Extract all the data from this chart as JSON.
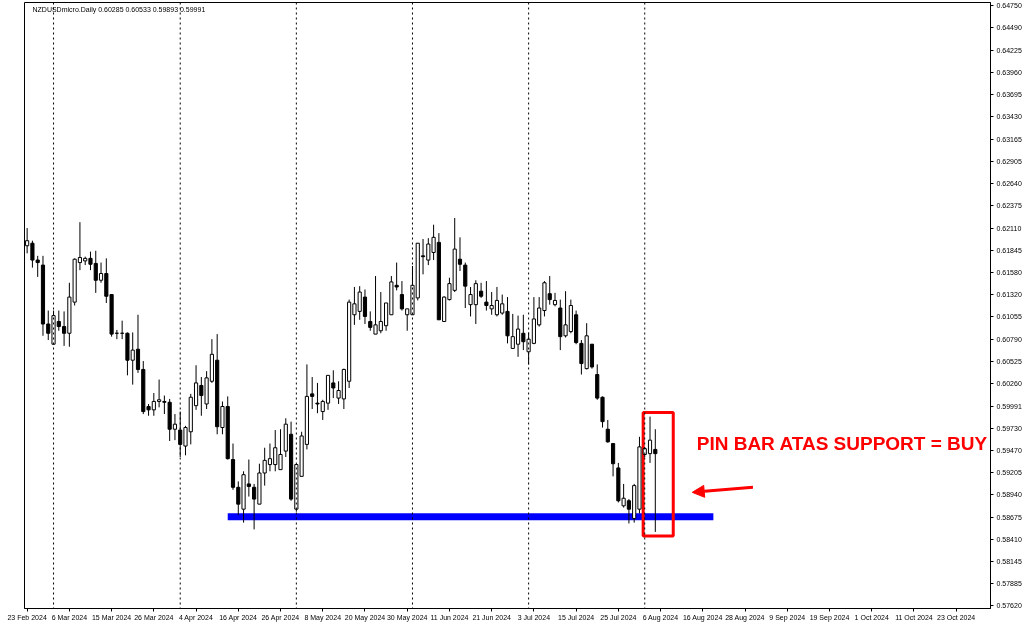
{
  "chart_data": {
    "type": "candlestick",
    "title": "NZDUSDmicro.Daily 0.60285 0.60533 0.59893 0.59991",
    "categories": [
      "23 Feb 2024",
      null,
      null,
      null,
      null,
      null,
      null,
      null,
      "6 Mar 2024",
      null,
      null,
      null,
      null,
      null,
      null,
      null,
      "15 Mar 2024",
      null,
      null,
      null,
      null,
      null,
      null,
      null,
      "26 Mar 2024",
      null,
      null,
      null,
      null,
      null,
      null,
      null,
      "4 Apr 2024",
      null,
      null,
      null,
      null,
      null,
      null,
      null,
      "16 Apr 2024",
      null,
      null,
      null,
      null,
      null,
      null,
      null,
      "26 Apr 2024",
      null,
      null,
      null,
      null,
      null,
      null,
      null,
      "8 May 2024",
      null,
      null,
      null,
      null,
      null,
      null,
      null,
      "20 May 2024",
      null,
      null,
      null,
      null,
      null,
      null,
      null,
      "30 May 2024",
      null,
      null,
      null,
      null,
      null,
      null,
      null,
      "11 Jun 2024",
      null,
      null,
      null,
      null,
      null,
      null,
      null,
      "21 Jun 2024",
      null,
      null,
      null,
      null,
      null,
      null,
      null,
      "3 Jul 2024",
      null,
      null,
      null,
      null,
      null,
      null,
      null,
      "15 Jul 2024",
      null,
      null,
      null,
      null,
      null,
      null,
      null,
      "25 Jul 2024",
      null,
      null,
      null,
      null,
      null,
      null,
      null,
      "6 Aug 2024",
      null,
      null,
      null,
      null,
      null,
      null,
      null,
      "16 Aug 2024",
      null,
      null,
      null,
      null,
      null,
      null,
      null,
      "28 Aug 2024",
      null,
      null,
      null,
      null,
      null,
      null,
      null,
      "9 Sep 2024",
      null,
      null,
      null,
      null,
      null,
      null,
      null,
      "19 Sep 2024",
      null,
      null,
      null,
      null,
      null,
      null,
      null,
      "1 Oct 2024",
      null,
      null,
      null,
      null,
      null,
      null,
      null,
      "11 Oct 2024",
      null,
      null,
      null,
      null,
      null,
      null,
      null,
      "23 Oct 2024",
      null,
      null,
      null,
      null,
      null,
      null
    ],
    "ohlc": [
      [
        0.619,
        0.6211,
        0.6181,
        0.6196
      ],
      [
        0.6193,
        0.6196,
        0.6164,
        0.6173
      ],
      [
        0.6173,
        0.6178,
        0.6153,
        0.617
      ],
      [
        0.6167,
        0.6178,
        0.6083,
        0.6097
      ],
      [
        0.6097,
        0.6113,
        0.6078,
        0.6086
      ],
      [
        0.6073,
        0.6113,
        0.6073,
        0.6107
      ],
      [
        0.61,
        0.6113,
        0.6089,
        0.6094
      ],
      [
        0.6094,
        0.6112,
        0.6071,
        0.6086
      ],
      [
        0.6086,
        0.6146,
        0.607,
        0.6129
      ],
      [
        0.6123,
        0.6175,
        0.6119,
        0.6174
      ],
      [
        0.617,
        0.6218,
        0.6161,
        0.6176
      ],
      [
        0.6172,
        0.6177,
        0.6167,
        0.6175
      ],
      [
        0.6175,
        0.6183,
        0.6161,
        0.6168
      ],
      [
        0.6169,
        0.6184,
        0.6134,
        0.6149
      ],
      [
        0.6149,
        0.617,
        0.6146,
        0.6157
      ],
      [
        0.6157,
        0.6175,
        0.6122,
        0.613
      ],
      [
        0.6132,
        0.6132,
        0.6082,
        0.6085
      ],
      [
        0.6086,
        0.609,
        0.6079,
        0.6086
      ],
      [
        0.6086,
        0.6101,
        0.6079,
        0.6086
      ],
      [
        0.6086,
        0.6087,
        0.6036,
        0.6054
      ],
      [
        0.6054,
        0.6087,
        0.6025,
        0.6066
      ],
      [
        0.6067,
        0.6108,
        0.6039,
        0.6043
      ],
      [
        0.6043,
        0.6053,
        0.599,
        0.5993
      ],
      [
        0.5999,
        0.6002,
        0.5988,
        0.5995
      ],
      [
        0.5995,
        0.6015,
        0.5988,
        0.6005
      ],
      [
        0.6005,
        0.6031,
        0.5998,
        0.6007
      ],
      [
        0.6005,
        0.6012,
        0.599,
        0.6004
      ],
      [
        0.6004,
        0.6008,
        0.5958,
        0.5972
      ],
      [
        0.5972,
        0.599,
        0.5959,
        0.5978
      ],
      [
        0.5971,
        0.5993,
        0.5939,
        0.5954
      ],
      [
        0.5952,
        0.5976,
        0.5941,
        0.5974
      ],
      [
        0.5969,
        0.6014,
        0.5954,
        0.601
      ],
      [
        0.6,
        0.6048,
        0.5995,
        0.6027
      ],
      [
        0.6024,
        0.6034,
        0.5988,
        0.6012
      ],
      [
        0.6002,
        0.6041,
        0.5996,
        0.6033
      ],
      [
        0.6029,
        0.6079,
        0.6027,
        0.6061
      ],
      [
        0.6054,
        0.6085,
        0.5966,
        0.5975
      ],
      [
        0.5974,
        0.6005,
        0.5966,
        0.5999
      ],
      [
        0.5999,
        0.6011,
        0.5936,
        0.5937
      ],
      [
        0.5936,
        0.5955,
        0.59,
        0.5903
      ],
      [
        0.5903,
        0.591,
        0.587,
        0.5883
      ],
      [
        0.5877,
        0.5922,
        0.5861,
        0.5918
      ],
      [
        0.5907,
        0.5936,
        0.5892,
        0.5904
      ],
      [
        0.5903,
        0.5907,
        0.5853,
        0.5889
      ],
      [
        0.5883,
        0.5931,
        0.5883,
        0.592
      ],
      [
        0.592,
        0.595,
        0.5905,
        0.5935
      ],
      [
        0.593,
        0.5955,
        0.5922,
        0.5937
      ],
      [
        0.593,
        0.5971,
        0.5922,
        0.595
      ],
      [
        0.5924,
        0.5972,
        0.5924,
        0.5942
      ],
      [
        0.5946,
        0.5985,
        0.5939,
        0.5978
      ],
      [
        0.5966,
        0.5981,
        0.5887,
        0.5889
      ],
      [
        0.5877,
        0.593,
        0.5874,
        0.593
      ],
      [
        0.5916,
        0.5969,
        0.5916,
        0.5964
      ],
      [
        0.5954,
        0.6049,
        0.5948,
        0.6011
      ],
      [
        0.6014,
        0.6034,
        0.5996,
        0.6011
      ],
      [
        0.6003,
        0.6027,
        0.5991,
        0.6002
      ],
      [
        0.5993,
        0.6007,
        0.5983,
        0.6005
      ],
      [
        0.6003,
        0.6036,
        0.5995,
        0.6036
      ],
      [
        0.6027,
        0.6042,
        0.6009,
        0.6021
      ],
      [
        0.6009,
        0.6029,
        0.6002,
        0.6018
      ],
      [
        0.6008,
        0.6044,
        0.5996,
        0.6043
      ],
      [
        0.6029,
        0.6126,
        0.6021,
        0.6123
      ],
      [
        0.6108,
        0.6141,
        0.6096,
        0.6121
      ],
      [
        0.6112,
        0.6142,
        0.6102,
        0.6135
      ],
      [
        0.6129,
        0.6138,
        0.6097,
        0.6106
      ],
      [
        0.61,
        0.6112,
        0.6089,
        0.6093
      ],
      [
        0.6085,
        0.6154,
        0.6085,
        0.6096
      ],
      [
        0.6089,
        0.6135,
        0.6086,
        0.61
      ],
      [
        0.6095,
        0.6122,
        0.6089,
        0.6122
      ],
      [
        0.6108,
        0.6154,
        0.6108,
        0.6147
      ],
      [
        0.6143,
        0.617,
        0.6137,
        0.6141
      ],
      [
        0.6132,
        0.6148,
        0.6113,
        0.6115
      ],
      [
        0.6108,
        0.6115,
        0.6089,
        0.6115
      ],
      [
        0.6108,
        0.6166,
        0.6108,
        0.6143
      ],
      [
        0.6128,
        0.6193,
        0.6125,
        0.6193
      ],
      [
        0.6178,
        0.6198,
        0.6156,
        0.6177
      ],
      [
        0.6173,
        0.6199,
        0.6167,
        0.6192
      ],
      [
        0.6182,
        0.6215,
        0.6173,
        0.62
      ],
      [
        0.6194,
        0.6205,
        0.6102,
        0.6102
      ],
      [
        0.61,
        0.613,
        0.61,
        0.6129
      ],
      [
        0.6126,
        0.6152,
        0.6125,
        0.6145
      ],
      [
        0.6137,
        0.6223,
        0.6135,
        0.6186
      ],
      [
        0.6174,
        0.62,
        0.616,
        0.6168
      ],
      [
        0.6167,
        0.617,
        0.6116,
        0.6142
      ],
      [
        0.612,
        0.6141,
        0.6106,
        0.6132
      ],
      [
        0.612,
        0.6149,
        0.6097,
        0.6145
      ],
      [
        0.6136,
        0.6146,
        0.6128,
        0.613
      ],
      [
        0.6123,
        0.6148,
        0.6113,
        0.6119
      ],
      [
        0.6115,
        0.6135,
        0.6108,
        0.6119
      ],
      [
        0.6108,
        0.6141,
        0.6106,
        0.6125
      ],
      [
        0.611,
        0.6132,
        0.6108,
        0.6121
      ],
      [
        0.6112,
        0.6129,
        0.6074,
        0.6083
      ],
      [
        0.6068,
        0.6109,
        0.6068,
        0.6082
      ],
      [
        0.6073,
        0.6107,
        0.6058,
        0.6091
      ],
      [
        0.6086,
        0.6108,
        0.6066,
        0.6076
      ],
      [
        0.6064,
        0.6087,
        0.6049,
        0.6079
      ],
      [
        0.6074,
        0.6129,
        0.6073,
        0.6103
      ],
      [
        0.6096,
        0.6129,
        0.6094,
        0.6116
      ],
      [
        0.6113,
        0.6148,
        0.6106,
        0.6146
      ],
      [
        0.6133,
        0.6154,
        0.612,
        0.6126
      ],
      [
        0.612,
        0.6134,
        0.6118,
        0.6125
      ],
      [
        0.6116,
        0.6126,
        0.6066,
        0.6082
      ],
      [
        0.6083,
        0.6136,
        0.6081,
        0.6096
      ],
      [
        0.6088,
        0.6126,
        0.6086,
        0.6119
      ],
      [
        0.6108,
        0.6113,
        0.6073,
        0.6075
      ],
      [
        0.6074,
        0.6078,
        0.6037,
        0.605
      ],
      [
        0.6044,
        0.6098,
        0.6043,
        0.6083
      ],
      [
        0.6073,
        0.6073,
        0.6044,
        0.6046
      ],
      [
        0.6037,
        0.6049,
        0.6007,
        0.6009
      ],
      [
        0.601,
        0.6011,
        0.5974,
        0.5981
      ],
      [
        0.5972,
        0.5983,
        0.5956,
        0.5957
      ],
      [
        0.5955,
        0.5955,
        0.5916,
        0.5931
      ],
      [
        0.5926,
        0.5932,
        0.5885,
        0.5887
      ],
      [
        0.5881,
        0.5907,
        0.5879,
        0.589
      ],
      [
        0.5887,
        0.5889,
        0.586,
        0.5877
      ],
      [
        0.5866,
        0.5907,
        0.5861,
        0.5905
      ],
      [
        0.5877,
        0.5963,
        0.5872,
        0.5951
      ],
      [
        0.5942,
        0.5951,
        0.5939,
        0.5949
      ],
      [
        0.5943,
        0.5987,
        0.5932,
        0.5959
      ],
      [
        0.5948,
        0.5972,
        0.585,
        0.5943
      ],
      null,
      null,
      null,
      null,
      null,
      null,
      null,
      null,
      null,
      null,
      null,
      null,
      null,
      null,
      null,
      null,
      null,
      null,
      null,
      null,
      null,
      null,
      null,
      null,
      null,
      null,
      null,
      null,
      null,
      null,
      null,
      null,
      null,
      null,
      null,
      null,
      null,
      null,
      null,
      null,
      null,
      null,
      null,
      null,
      null,
      null,
      null,
      null,
      null,
      null,
      null,
      null,
      null,
      null,
      null,
      null,
      null,
      null,
      null,
      null,
      null,
      null,
      null
    ],
    "series": [
      {
        "type": "line",
        "color": "#0000ff",
        "values": [
          null,
          null,
          null,
          null,
          null,
          null,
          null,
          null,
          null,
          null,
          null,
          null,
          null,
          null,
          null,
          null,
          null,
          null,
          null,
          null,
          null,
          null,
          null,
          null,
          null,
          null,
          null,
          null,
          null,
          null,
          null,
          null,
          null,
          null,
          null,
          null,
          null,
          null,
          0.5868,
          0.5868,
          0.5868,
          0.5868,
          0.5868,
          0.5868,
          0.5868,
          0.5868,
          0.5868,
          0.5868,
          0.5868,
          0.5868,
          0.5868,
          0.5868,
          0.5868,
          0.5868,
          0.5868,
          0.5868,
          0.5868,
          0.5868,
          0.5868,
          0.5868,
          0.5868,
          0.5868,
          0.5868,
          0.5868,
          0.5868,
          0.5868,
          0.5868,
          0.5868,
          0.5868,
          0.5868,
          0.5868,
          0.5868,
          0.5868,
          0.5868,
          0.5868,
          0.5868,
          0.5868,
          0.5868,
          0.5868,
          0.5868,
          0.5868,
          0.5868,
          0.5868,
          0.5868,
          0.5868,
          0.5868,
          0.5868,
          0.5868,
          0.5868,
          0.5868,
          0.5868,
          0.5868,
          0.5868,
          0.5868,
          0.5868,
          0.5868,
          0.5868,
          0.5868,
          0.5868,
          0.5868,
          0.5868,
          0.5868,
          0.5868,
          0.5868,
          0.5868,
          0.5868,
          0.5868,
          0.5868,
          0.5868,
          0.5868,
          0.5868,
          0.5868,
          0.5868,
          0.5868,
          0.5868,
          0.5868,
          0.5868,
          0.5868,
          0.5868,
          0.5868,
          0.5868,
          0.5868,
          0.5868,
          0.5868,
          0.5868,
          0.5868,
          0.5868,
          0.5868,
          0.5868,
          0.5868,
          0.5868,
          null,
          null,
          null,
          null,
          null,
          null,
          null,
          null,
          null,
          null,
          null,
          null,
          null,
          null,
          null,
          null,
          null,
          null,
          null,
          null,
          null,
          null,
          null,
          null,
          null,
          null,
          null,
          null,
          null,
          null,
          null,
          null,
          null,
          null,
          null,
          null,
          null,
          null,
          null,
          null,
          null,
          null,
          null,
          null,
          null,
          null,
          null,
          null,
          null,
          null,
          null,
          null
        ]
      }
    ],
    "annotations": [
      "PIN BAR ATAS SUPPORT = BUY"
    ],
    "ylim": [
      0.5759,
      0.6479
    ],
    "yticks": [
      {
        "value": 0.6475,
        "label": "0.64750"
      },
      {
        "value": 0.6449,
        "label": "0.64490"
      },
      {
        "value": 0.64225,
        "label": "0.64225"
      },
      {
        "value": 0.6396,
        "label": "0.63960"
      },
      {
        "value": 0.63695,
        "label": "0.63695"
      },
      {
        "value": 0.6343,
        "label": "0.63430"
      },
      {
        "value": 0.63165,
        "label": "0.63165"
      },
      {
        "value": 0.62905,
        "label": "0.62905"
      },
      {
        "value": 0.6264,
        "label": "0.62640"
      },
      {
        "value": 0.62375,
        "label": "0.62375"
      },
      {
        "value": 0.6211,
        "label": "0.62110"
      },
      {
        "value": 0.61845,
        "label": "0.61845"
      },
      {
        "value": 0.6158,
        "label": "0.61580"
      },
      {
        "value": 0.6132,
        "label": "0.61320"
      },
      {
        "value": 0.61055,
        "label": "0.61055"
      },
      {
        "value": 0.6079,
        "label": "0.60790"
      },
      {
        "value": 0.60525,
        "label": "0.60525"
      },
      {
        "value": 0.6026,
        "label": "0.60260"
      },
      {
        "value": 0.59991,
        "label": "0.59991"
      },
      {
        "value": 0.5973,
        "label": "0.59730"
      },
      {
        "value": 0.5947,
        "label": "0.59470"
      },
      {
        "value": 0.59205,
        "label": "0.59205"
      },
      {
        "value": 0.5894,
        "label": "0.58940"
      },
      {
        "value": 0.58675,
        "label": "0.58675"
      },
      {
        "value": 0.5841,
        "label": "0.58410"
      },
      {
        "value": 0.58145,
        "label": "0.58145"
      },
      {
        "value": 0.57885,
        "label": "0.57885"
      },
      {
        "value": 0.5762,
        "label": "0.57620"
      }
    ],
    "grid": false
  }
}
